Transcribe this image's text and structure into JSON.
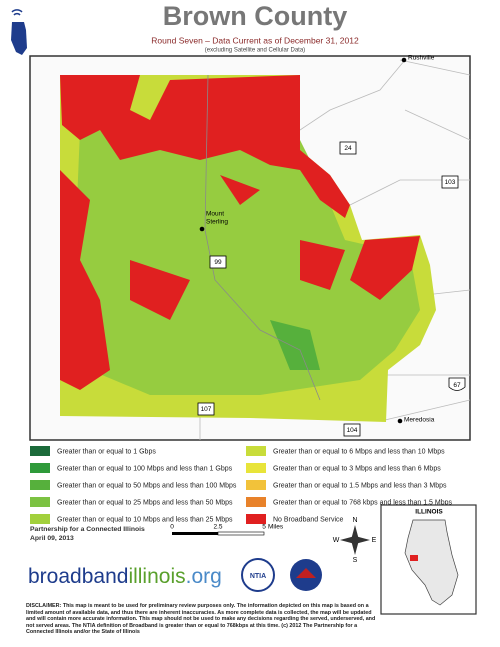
{
  "header": {
    "title": "Brown County",
    "subtitle": "Round Seven – Data Current as of December 31, 2012",
    "note": "(excluding Satellite and Cellular Data)"
  },
  "map": {
    "places": [
      {
        "lines": [
          "Rushville"
        ]
      },
      {
        "lines": [
          "Mount",
          "Sterling"
        ]
      },
      {
        "lines": [
          "Meredosia"
        ]
      }
    ],
    "routes": [
      "24",
      "103",
      "99",
      "67",
      "107",
      "104"
    ]
  },
  "legend": {
    "items": [
      {
        "label": "Greater than or equal to 1 Gbps",
        "color": "#1b6a3a"
      },
      {
        "label": "Greater than or equal to 100 Mbps and less than 1 Gbps",
        "color": "#2f9a3a"
      },
      {
        "label": "Greater than or equal to 50 Mbps and less than 100 Mbps",
        "color": "#56b03c"
      },
      {
        "label": "Greater than or equal to 25 Mbps and less than 50 Mbps",
        "color": "#7cc242"
      },
      {
        "label": "Greater than or equal to 10 Mbps and less than 25 Mbps",
        "color": "#a2d03c"
      },
      {
        "label": "Greater than or equal to 6 Mbps and less than 10 Mbps",
        "color": "#c8dc3a"
      },
      {
        "label": "Greater than or equal to 3 Mbps and less than 6 Mbps",
        "color": "#e8e43a"
      },
      {
        "label": "Greater than or equal to 1.5 Mbps and less than 3 Mbps",
        "color": "#f2c23a"
      },
      {
        "label": "Greater than or equal to 768 kbps and less than 1.5 Mbps",
        "color": "#e8822a"
      },
      {
        "label": "No Broadband Service",
        "color": "#e02020"
      }
    ]
  },
  "footer": {
    "partnership": "Partnership for a Connected Illinois",
    "date": "April 09, 2013",
    "scale": {
      "ticks": [
        "0",
        "2.5",
        "5"
      ],
      "unit": "Miles"
    },
    "compass": [
      "N",
      "E",
      "S",
      "W"
    ],
    "inset_title": "ILLINOIS",
    "logo": [
      "broadband",
      "illinois",
      ".org"
    ],
    "agency_logo": "NTIA",
    "disclaimer": "DISCLAIMER: This map is meant to be used for preliminary review purposes only. The information depicted on this map is based on a limited amount of available data, and thus there are inherent inaccuracies. As more complete data is collected, the map will be updated and will contain more accurate information. This map should not be used to make any decisions regarding the served, underserved, and not served areas. The NTIA definition of Broadband is greater than or equal to 768kbps at this time. (c) 2012 The Partnership for a Connected Illinois and/or the State of Illinois"
  }
}
